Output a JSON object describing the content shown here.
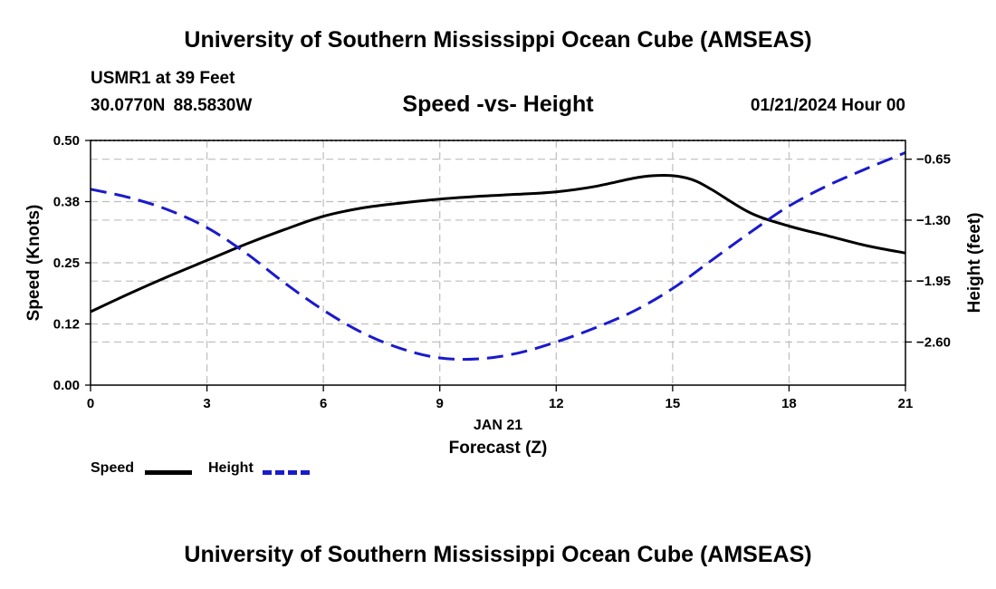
{
  "header": {
    "title": "University of Southern Mississippi Ocean Cube (AMSEAS)",
    "station": "USMR1 at 39 Feet",
    "coords": "30.0770N  88.5830W",
    "date": "01/21/2024 Hour 00"
  },
  "footer": {
    "title": "University of Southern Mississippi Ocean Cube (AMSEAS)"
  },
  "chart_data": {
    "type": "line",
    "title": "Speed -vs- Height",
    "xlabel": "Forecast (Z)",
    "xsublabel": "JAN 21",
    "ylabel": "Speed (Knots)",
    "y2label": "Height (feet)",
    "xlim": [
      0,
      21
    ],
    "ylim": [
      0,
      0.5
    ],
    "y2lim": [
      -3.06,
      -0.45
    ],
    "x_ticks": [
      0,
      3,
      6,
      9,
      12,
      15,
      18,
      21
    ],
    "x_tick_labels": [
      "0",
      "3",
      "6",
      "9",
      "12",
      "15",
      "18",
      "21"
    ],
    "y_ticks": [
      0,
      0.125,
      0.25,
      0.375,
      0.5
    ],
    "y_tick_labels": [
      "0.00",
      "0.12",
      "0.25",
      "0.38",
      "0.50"
    ],
    "y2_ticks": [
      -0.65,
      -1.3,
      -1.95,
      -2.6
    ],
    "y2_tick_labels": [
      "−0.65",
      "−1.30",
      "−1.95",
      "−2.60"
    ],
    "grid": true,
    "series": [
      {
        "name": "Speed",
        "axis": "left",
        "color": "#000000",
        "style": "solid",
        "x": [
          0,
          1,
          2,
          3,
          4,
          5,
          6,
          7,
          8,
          9,
          10,
          11,
          12,
          13,
          14,
          14.5,
          15,
          15.5,
          16,
          17,
          18,
          19,
          20,
          21
        ],
        "values": [
          0.15,
          0.187,
          0.222,
          0.255,
          0.288,
          0.318,
          0.345,
          0.362,
          0.372,
          0.38,
          0.386,
          0.39,
          0.395,
          0.406,
          0.423,
          0.428,
          0.428,
          0.42,
          0.4,
          0.352,
          0.325,
          0.305,
          0.285,
          0.27
        ]
      },
      {
        "name": "Height",
        "axis": "right",
        "color": "#1a1acc",
        "style": "dashed",
        "x": [
          0,
          1,
          2,
          3,
          4,
          5,
          6,
          7,
          8,
          9,
          10,
          11,
          12,
          13,
          14,
          15,
          16,
          17,
          18,
          19,
          20,
          21
        ],
        "values": [
          -0.97,
          -1.06,
          -1.19,
          -1.38,
          -1.65,
          -1.97,
          -2.26,
          -2.5,
          -2.67,
          -2.77,
          -2.78,
          -2.72,
          -2.6,
          -2.45,
          -2.27,
          -2.03,
          -1.73,
          -1.43,
          -1.15,
          -0.93,
          -0.75,
          -0.58
        ]
      }
    ],
    "legend": [
      {
        "label": "Speed",
        "color": "#000000",
        "style": "solid"
      },
      {
        "label": "Height",
        "color": "#1a1acc",
        "style": "dashed"
      }
    ]
  }
}
